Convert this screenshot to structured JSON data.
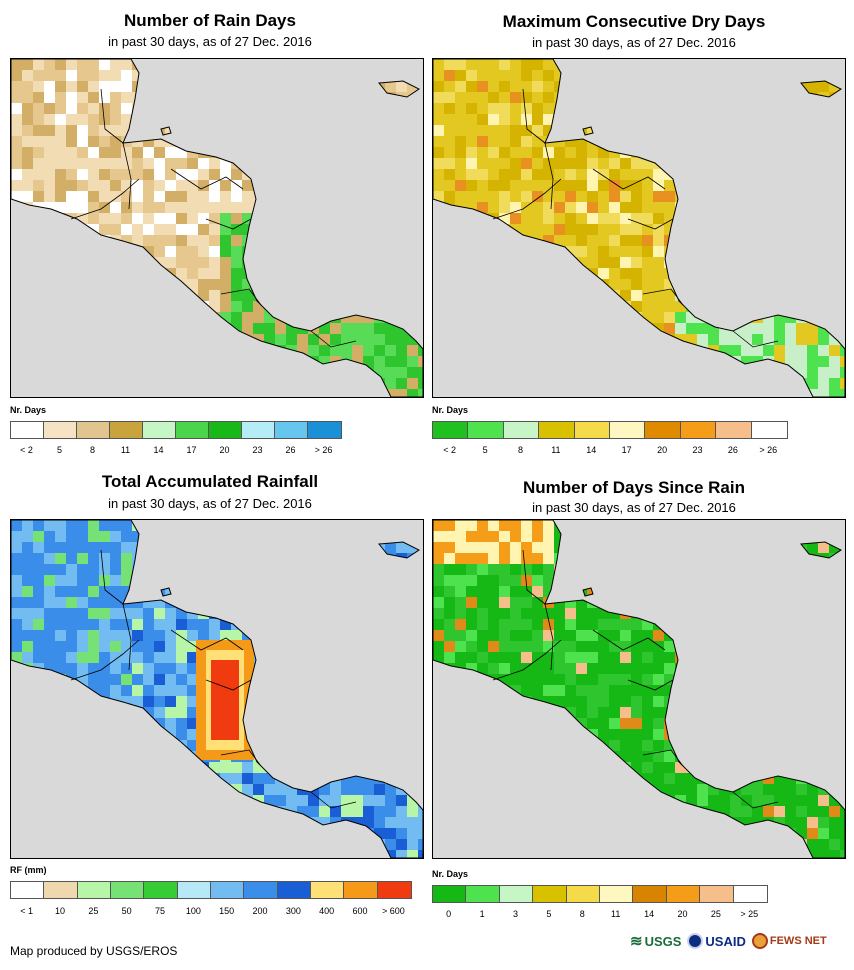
{
  "panels": [
    {
      "title": "Number of Rain Days",
      "subtitle": "in past 30 days, as of 27 Dec. 2016",
      "legend_title": "Nr. Days",
      "legend_colors": [
        "#ffffff",
        "#f5e3c4",
        "#e0c68e",
        "#c9a43c",
        "#c6f6c6",
        "#4cd44c",
        "#17b817",
        "#b6ecf6",
        "#66c6ee",
        "#1a90d6"
      ],
      "legend_ticks": [
        "< 2",
        "5",
        "8",
        "11",
        "14",
        "17",
        "20",
        "23",
        "26",
        "> 26"
      ],
      "map_palette": [
        "#f2dcb4",
        "#e6c88e",
        "#d2ae67",
        "#c69c4c",
        "#ffffff",
        "#2ec52e",
        "#58dc58"
      ]
    },
    {
      "title": "Maximum Consecutive Dry Days",
      "subtitle": "in past 30 days, as of 27 Dec. 2016",
      "legend_title": "Nr. Days",
      "legend_colors": [
        "#1fc01f",
        "#4ee24e",
        "#c8f5c8",
        "#d8c200",
        "#f5da4a",
        "#fff7c2",
        "#e08a00",
        "#f59c18",
        "#f6be8a",
        "#ffffff"
      ],
      "legend_ticks": [
        "< 2",
        "5",
        "8",
        "11",
        "14",
        "17",
        "20",
        "23",
        "26",
        "> 26"
      ],
      "map_palette": [
        "#e2c820",
        "#d4b400",
        "#f0dc5a",
        "#e89020",
        "#c8f0c8",
        "#4ee24e",
        "#fff5b0"
      ]
    },
    {
      "title": "Total Accumulated Rainfall",
      "subtitle": "in past 30 days, as of 27 Dec. 2016",
      "legend_title": "RF (mm)",
      "legend_colors": [
        "#ffffff",
        "#efd7ae",
        "#b6f6a6",
        "#76e276",
        "#36cc36",
        "#b6e8f6",
        "#72bcf2",
        "#3a8eea",
        "#1a5ed6",
        "#ffe076",
        "#f59a18",
        "#f03a10"
      ],
      "legend_ticks": [
        "< 1",
        "10",
        "25",
        "50",
        "75",
        "100",
        "150",
        "200",
        "300",
        "400",
        "600",
        "> 600"
      ],
      "map_palette": [
        "#3a8eea",
        "#72bcf2",
        "#1a5ed6",
        "#76e276",
        "#b6f6a6",
        "#36cc36",
        "#ffe076"
      ]
    },
    {
      "title": "Number of Days Since Rain",
      "subtitle": "in past 30 days, as of 27 Dec. 2016",
      "legend_title": "Nr. Days",
      "legend_colors": [
        "#16b816",
        "#4ee24e",
        "#c6f6c6",
        "#d8c200",
        "#f5da4a",
        "#fff7c2",
        "#d98400",
        "#f59c18",
        "#f6be8a",
        "#ffffff"
      ],
      "legend_ticks": [
        "0",
        "1",
        "3",
        "5",
        "8",
        "11",
        "14",
        "20",
        "25",
        "> 25"
      ],
      "map_palette": [
        "#16b816",
        "#2ec52e",
        "#4ee24e",
        "#e08a1a",
        "#f59c18",
        "#f6be8a",
        "#fff5b0"
      ]
    }
  ],
  "footer": {
    "credit": "Map produced by USGS/EROS",
    "logos": [
      "USGS",
      "USAID",
      "FEWS NET"
    ]
  }
}
